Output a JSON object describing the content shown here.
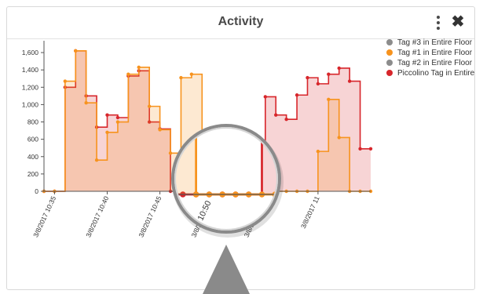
{
  "window": {
    "title": "Activity"
  },
  "header": {
    "menu_icon": "more-vert-icon",
    "close_icon": "close-icon",
    "close_glyph": "✖"
  },
  "legend": {
    "items": [
      {
        "label": "Tag #3 in Entire Floor",
        "color": "#8c8c8c"
      },
      {
        "label": "Tag #1 in Entire Floor",
        "color": "#f7931e"
      },
      {
        "label": "Tag #2 in Entire Floor",
        "color": "#8c8c8c"
      },
      {
        "label": "Piccolino Tag in Entire Floor",
        "color": "#d7262b"
      }
    ]
  },
  "chart_data": {
    "type": "area",
    "ylim": [
      0,
      1700
    ],
    "xlim": [
      "10:34",
      "11:05"
    ],
    "y_ticks": [
      0,
      200,
      400,
      600,
      800,
      1000,
      1200,
      1400,
      1600
    ],
    "y_tick_labels": [
      "0",
      "200",
      "400",
      "600",
      "800",
      "1,000",
      "1,200",
      "1,400",
      "1,600"
    ],
    "x_ticks": [
      {
        "x": "10:35",
        "label": "3/8/2017 10:35"
      },
      {
        "x": "10:40",
        "label": "3/8/2017 10:40"
      },
      {
        "x": "10:45",
        "label": "3/8/2017 10:45"
      },
      {
        "x": "10:50",
        "label": "3/8/2017 10:50"
      },
      {
        "x": "10:55",
        "label": "3/8/2017 10:55"
      },
      {
        "x": "11:00",
        "label": "3/8/2017 11"
      }
    ],
    "grid": false,
    "legend_position": "right",
    "series": [
      {
        "name": "Piccolino Tag in Entire Floor",
        "color": "#d7262b",
        "fill": "rgba(215,38,43,0.2)",
        "points": [
          [
            "10:34",
            0
          ],
          [
            "10:35",
            0
          ],
          [
            "10:36",
            1200
          ],
          [
            "10:37",
            1620
          ],
          [
            "10:38",
            1100
          ],
          [
            "10:39",
            740
          ],
          [
            "10:40",
            880
          ],
          [
            "10:41",
            850
          ],
          [
            "10:42",
            1330
          ],
          [
            "10:43",
            1390
          ],
          [
            "10:44",
            800
          ],
          [
            "10:45",
            720
          ],
          [
            "10:46",
            0
          ],
          [
            "10:47",
            0
          ],
          [
            "10:48",
            0
          ],
          [
            "10:49",
            0
          ],
          [
            "10:50",
            0
          ],
          [
            "10:51",
            0
          ],
          [
            "10:52",
            0
          ],
          [
            "10:53",
            0
          ],
          [
            "10:54",
            590
          ],
          [
            "10:55",
            1090
          ],
          [
            "10:56",
            880
          ],
          [
            "10:57",
            830
          ],
          [
            "10:58",
            1110
          ],
          [
            "10:59",
            1310
          ],
          [
            "11:00",
            1240
          ],
          [
            "11:01",
            1350
          ],
          [
            "11:02",
            1420
          ],
          [
            "11:03",
            1270
          ],
          [
            "11:04",
            490
          ],
          [
            "11:05",
            490
          ]
        ]
      },
      {
        "name": "Tag #1 in Entire Floor",
        "color": "#f7931e",
        "fill": "rgba(247,147,30,0.2)",
        "points": [
          [
            "10:34",
            0
          ],
          [
            "10:35",
            0
          ],
          [
            "10:36",
            1270
          ],
          [
            "10:37",
            1620
          ],
          [
            "10:38",
            1020
          ],
          [
            "10:39",
            360
          ],
          [
            "10:40",
            680
          ],
          [
            "10:41",
            800
          ],
          [
            "10:42",
            1350
          ],
          [
            "10:43",
            1430
          ],
          [
            "10:44",
            980
          ],
          [
            "10:45",
            710
          ],
          [
            "10:46",
            440
          ],
          [
            "10:47",
            1310
          ],
          [
            "10:48",
            1350
          ],
          [
            "10:49",
            0
          ],
          [
            "10:50",
            0
          ],
          [
            "10:51",
            0
          ],
          [
            "10:52",
            0
          ],
          [
            "10:53",
            0
          ],
          [
            "10:54",
            0
          ],
          [
            "10:55",
            0
          ],
          [
            "10:56",
            0
          ],
          [
            "10:57",
            0
          ],
          [
            "10:58",
            0
          ],
          [
            "10:59",
            0
          ],
          [
            "11:00",
            460
          ],
          [
            "11:01",
            1060
          ],
          [
            "11:02",
            620
          ],
          [
            "11:03",
            0
          ],
          [
            "11:04",
            0
          ],
          [
            "11:05",
            0
          ]
        ]
      }
    ]
  }
}
